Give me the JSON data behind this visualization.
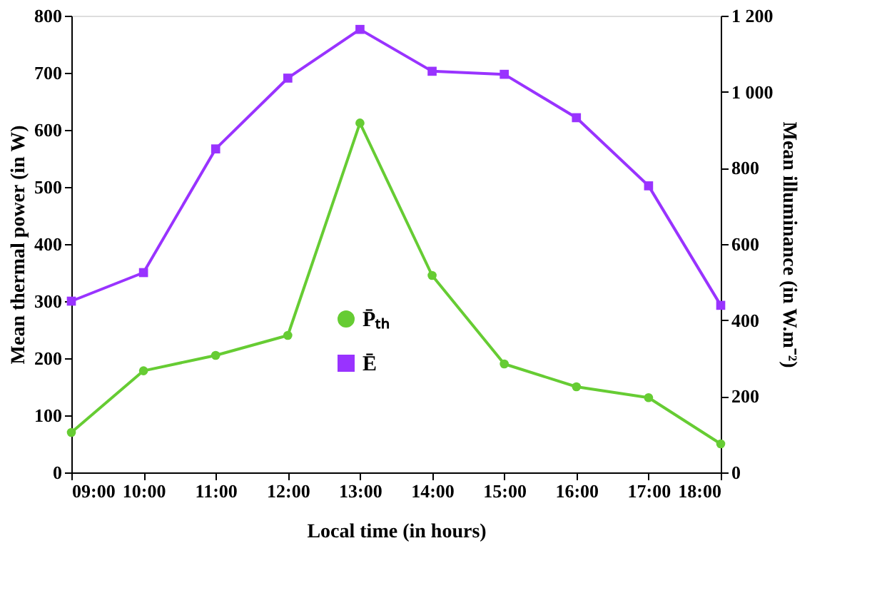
{
  "chart_data": {
    "type": "line",
    "xlabel": "Local time (in hours)",
    "ylabel": "Mean thermal power  (in W)",
    "y2label": "Mean illuminance  (in W.m⁻²)",
    "categories": [
      "09:00",
      "10:00",
      "11:00",
      "12:00",
      "13:00",
      "14:00",
      "15:00",
      "16:00",
      "17:00",
      "18:00"
    ],
    "series": [
      {
        "name": "P̄ₜₕ",
        "color": "#66cc33",
        "marker": "circle",
        "values": [
          70,
          178,
          205,
          240,
          612,
          345,
          190,
          150,
          131,
          50
        ]
      },
      {
        "name": "Ē",
        "color": "#9933ff",
        "marker": "square",
        "axis": "y2",
        "values": [
          450,
          525,
          850,
          1036,
          1164,
          1054,
          1046,
          932,
          753,
          439
        ]
      }
    ],
    "ylim": [
      0,
      800
    ],
    "yticks": [
      0,
      100,
      200,
      300,
      400,
      500,
      600,
      700,
      800
    ],
    "y2lim": [
      0,
      1200
    ],
    "y2ticks": [
      0,
      200,
      400,
      600,
      800,
      {
        "value": 1000,
        "label": "1 000"
      },
      {
        "value": 1200,
        "label": "1 200"
      }
    ],
    "grid": false,
    "legend": "bottom",
    "line_style": "solid"
  }
}
